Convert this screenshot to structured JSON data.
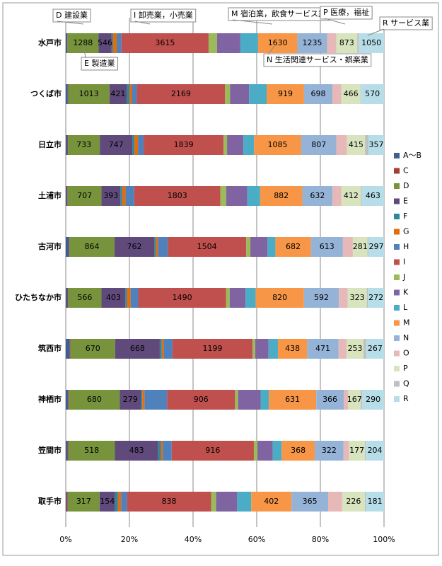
{
  "chart_data": {
    "type": "bar",
    "orientation": "horizontal",
    "stacked": "percent",
    "categories": [
      "水戸市",
      "つくば市",
      "日立市",
      "土浦市",
      "古河市",
      "ひたちなか市",
      "筑西市",
      "神栖市",
      "笠間市",
      "取手市"
    ],
    "series": [
      {
        "name": "A～B",
        "color": "#3f5f93",
        "values": [
          60,
          50,
          40,
          30,
          60,
          30,
          60,
          30,
          20,
          10
        ]
      },
      {
        "name": "C",
        "color": "#a53c3a",
        "values": [
          10,
          10,
          10,
          10,
          10,
          10,
          10,
          10,
          10,
          10
        ]
      },
      {
        "name": "D",
        "color": "#77933c",
        "data_labels": true,
        "values": [
          1288,
          1013,
          733,
          707,
          864,
          566,
          670,
          680,
          518,
          317
        ]
      },
      {
        "name": "E",
        "color": "#604a7b",
        "data_labels": true,
        "values": [
          546,
          421,
          747,
          393,
          762,
          403,
          668,
          279,
          483,
          154
        ]
      },
      {
        "name": "F",
        "color": "#31859c",
        "values": [
          60,
          70,
          50,
          40,
          30,
          30,
          30,
          20,
          30,
          30
        ]
      },
      {
        "name": "G",
        "color": "#e46c0a",
        "values": [
          150,
          60,
          80,
          70,
          40,
          60,
          30,
          30,
          20,
          30
        ]
      },
      {
        "name": "H",
        "color": "#4f81bd",
        "values": [
          200,
          120,
          130,
          180,
          190,
          130,
          130,
          300,
          100,
          60
        ]
      },
      {
        "name": "I",
        "color": "#c0504d",
        "data_labels": true,
        "values": [
          3615,
          2169,
          1839,
          1803,
          1504,
          1490,
          1199,
          906,
          916,
          838
        ]
      },
      {
        "name": "J",
        "color": "#9bbb59",
        "values": [
          350,
          120,
          80,
          120,
          80,
          60,
          40,
          40,
          40,
          50
        ]
      },
      {
        "name": "K",
        "color": "#8064a2",
        "values": [
          970,
          470,
          375,
          440,
          330,
          270,
          200,
          300,
          170,
          210
        ]
      },
      {
        "name": "L",
        "color": "#4bacc6",
        "values": [
          735,
          430,
          245,
          270,
          150,
          170,
          140,
          110,
          100,
          140
        ]
      },
      {
        "name": "M",
        "color": "#f79646",
        "data_labels": true,
        "values": [
          1630,
          919,
          1085,
          882,
          682,
          820,
          438,
          631,
          368,
          402
        ]
      },
      {
        "name": "N",
        "color": "#95b3d7",
        "data_labels": true,
        "values": [
          1235,
          698,
          807,
          632,
          613,
          592,
          471,
          366,
          322,
          365
        ]
      },
      {
        "name": "O",
        "color": "#e6b9b8",
        "values": [
          380,
          220,
          245,
          180,
          190,
          150,
          120,
          60,
          60,
          140
        ]
      },
      {
        "name": "P",
        "color": "#d7e4bd",
        "data_labels": true,
        "values": [
          873,
          466,
          415,
          412,
          281,
          323,
          253,
          167,
          177,
          226
        ]
      },
      {
        "name": "Q",
        "color": "#bfbfbf",
        "values": [
          60,
          10,
          80,
          20,
          20,
          20,
          40,
          20,
          10,
          10
        ]
      },
      {
        "name": "R",
        "color": "#b7dee8",
        "data_labels": true,
        "values": [
          1050,
          570,
          357,
          463,
          297,
          272,
          267,
          290,
          204,
          181
        ]
      }
    ],
    "xlim": [
      0,
      100
    ],
    "xticks": [
      {
        "value": 0,
        "label": "0%"
      },
      {
        "value": 20,
        "label": "20%"
      },
      {
        "value": 40,
        "label": "40%"
      },
      {
        "value": 60,
        "label": "60%"
      },
      {
        "value": 80,
        "label": "80%"
      },
      {
        "value": 100,
        "label": "100%"
      }
    ],
    "grid": true,
    "legend": "right",
    "annotations": [
      "D 建設業",
      "E 製造業",
      "I 卸売業，小売業",
      "M 宿泊業，飲食サービス業",
      "N 生活関連サービス・娯楽業",
      "P 医療，福祉",
      "R サービス業"
    ]
  }
}
